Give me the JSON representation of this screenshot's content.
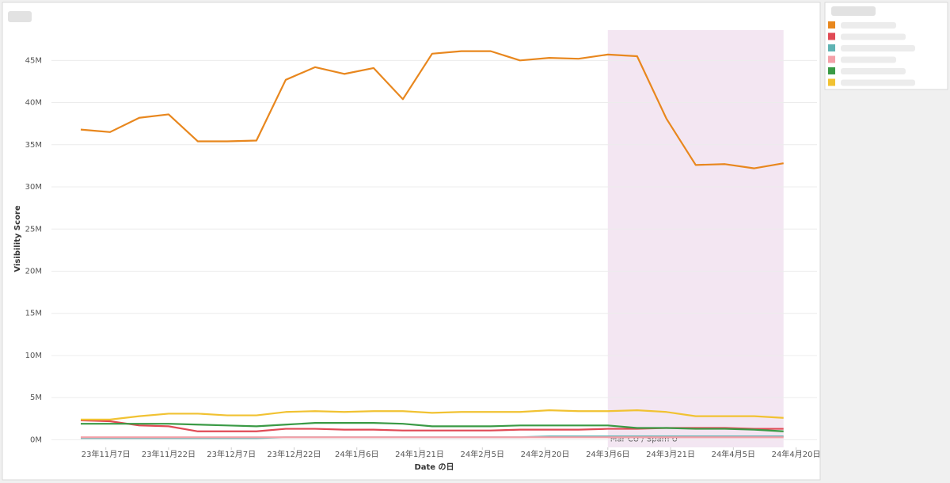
{
  "chart_data": {
    "type": "line",
    "y_label": "Visibility Score",
    "x_label": "Date の日",
    "x": [
      "2023-11-01",
      "2023-11-08",
      "2023-11-15",
      "2023-11-22",
      "2023-11-29",
      "2023-12-06",
      "2023-12-13",
      "2023-12-20",
      "2023-12-27",
      "2024-01-03",
      "2024-01-10",
      "2024-01-17",
      "2024-01-24",
      "2024-01-31",
      "2024-02-07",
      "2024-02-14",
      "2024-02-21",
      "2024-02-28",
      "2024-03-06",
      "2024-03-13",
      "2024-03-20",
      "2024-03-27",
      "2024-04-03",
      "2024-04-10",
      "2024-04-17"
    ],
    "xlim": [
      "2023-10-25",
      "2024-04-25"
    ],
    "xticks": [
      {
        "value": "2023-11-07",
        "label": "23年11月7日"
      },
      {
        "value": "2023-11-22",
        "label": "23年11月22日"
      },
      {
        "value": "2023-12-07",
        "label": "23年12月7日"
      },
      {
        "value": "2023-12-22",
        "label": "23年12月22日"
      },
      {
        "value": "2024-01-06",
        "label": "24年1月6日"
      },
      {
        "value": "2024-01-21",
        "label": "24年1月21日"
      },
      {
        "value": "2024-02-05",
        "label": "24年2月5日"
      },
      {
        "value": "2024-02-20",
        "label": "24年2月20日"
      },
      {
        "value": "2024-03-06",
        "label": "24年3月6日"
      },
      {
        "value": "2024-03-21",
        "label": "24年3月21日"
      },
      {
        "value": "2024-04-05",
        "label": "24年4月5日"
      },
      {
        "value": "2024-04-20",
        "label": "24年4月20日"
      }
    ],
    "ylim": [
      -0.9,
      48.6
    ],
    "yticks": [
      {
        "value": 0,
        "label": "0M"
      },
      {
        "value": 5,
        "label": "5M"
      },
      {
        "value": 10,
        "label": "10M"
      },
      {
        "value": 15,
        "label": "15M"
      },
      {
        "value": 20,
        "label": "20M"
      },
      {
        "value": 25,
        "label": "25M"
      },
      {
        "value": 30,
        "label": "30M"
      },
      {
        "value": 35,
        "label": "35M"
      },
      {
        "value": 40,
        "label": "40M"
      },
      {
        "value": 45,
        "label": "45M"
      }
    ],
    "grid": true,
    "band": {
      "start": "2024-03-06",
      "end": "2024-04-17",
      "label": "Mar CU / Spam U",
      "color": "#f3e6f2"
    },
    "series": [
      {
        "color": "#e8871e",
        "values": [
          36.8,
          36.5,
          38.2,
          38.6,
          35.4,
          35.4,
          35.5,
          42.7,
          44.2,
          43.4,
          44.1,
          40.4,
          45.8,
          46.1,
          46.1,
          45.0,
          45.3,
          45.2,
          45.7,
          45.5,
          38.1,
          32.6,
          32.7,
          32.2,
          32.8
        ]
      },
      {
        "color": "#e04a55",
        "values": [
          2.3,
          2.2,
          1.7,
          1.6,
          1.0,
          1.0,
          1.0,
          1.3,
          1.3,
          1.2,
          1.2,
          1.1,
          1.1,
          1.1,
          1.1,
          1.2,
          1.2,
          1.2,
          1.3,
          1.3,
          1.4,
          1.4,
          1.4,
          1.3,
          1.3
        ]
      },
      {
        "color": "#5fb3b3",
        "values": [
          0.2,
          0.2,
          0.2,
          0.2,
          0.2,
          0.2,
          0.2,
          0.3,
          0.3,
          0.3,
          0.3,
          0.3,
          0.3,
          0.3,
          0.3,
          0.3,
          0.4,
          0.4,
          0.4,
          0.4,
          0.4,
          0.4,
          0.4,
          0.4,
          0.4
        ]
      },
      {
        "color": "#f4a0a8",
        "values": [
          0.3,
          0.3,
          0.3,
          0.3,
          0.3,
          0.3,
          0.3,
          0.3,
          0.3,
          0.3,
          0.3,
          0.3,
          0.3,
          0.3,
          0.3,
          0.3,
          0.3,
          0.3,
          0.3,
          0.3,
          0.3,
          0.3,
          0.3,
          0.3,
          0.3
        ]
      },
      {
        "color": "#3a9a45",
        "values": [
          1.9,
          1.9,
          1.9,
          1.9,
          1.8,
          1.7,
          1.6,
          1.8,
          2.0,
          2.0,
          2.0,
          1.9,
          1.6,
          1.6,
          1.6,
          1.7,
          1.7,
          1.7,
          1.7,
          1.4,
          1.4,
          1.3,
          1.3,
          1.2,
          1.0
        ]
      },
      {
        "color": "#f1c232",
        "values": [
          2.4,
          2.4,
          2.8,
          3.1,
          3.1,
          2.9,
          2.9,
          3.3,
          3.4,
          3.3,
          3.4,
          3.4,
          3.2,
          3.3,
          3.3,
          3.3,
          3.5,
          3.4,
          3.4,
          3.5,
          3.3,
          2.8,
          2.8,
          2.8,
          2.6
        ]
      }
    ]
  }
}
